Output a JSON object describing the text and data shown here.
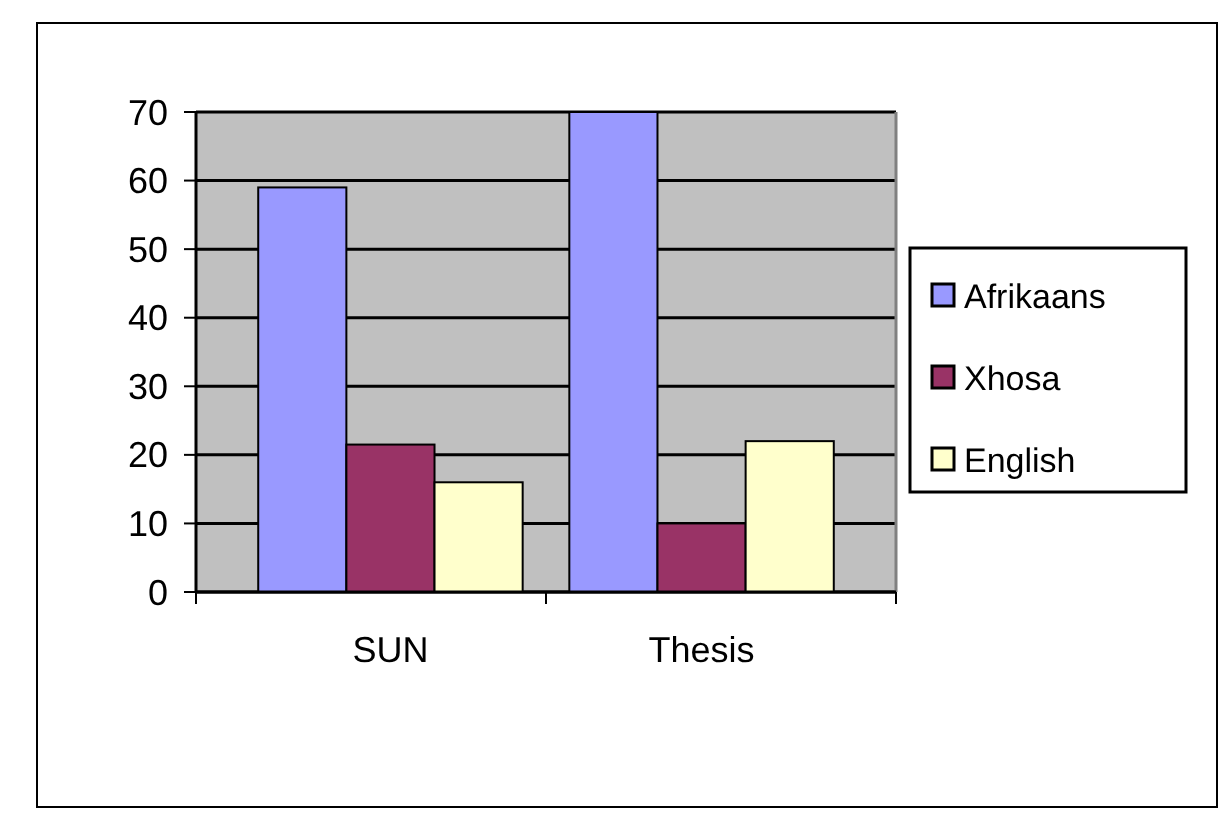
{
  "chart_data": {
    "type": "bar",
    "categories": [
      "SUN",
      "Thesis"
    ],
    "series": [
      {
        "name": "Afrikaans",
        "color": "#9999ff",
        "values": [
          59,
          70
        ]
      },
      {
        "name": "Xhosa",
        "color": "#993366",
        "values": [
          21.5,
          10
        ]
      },
      {
        "name": "English",
        "color": "#ffffcc",
        "values": [
          16,
          22
        ]
      }
    ],
    "ylim": [
      0,
      70
    ],
    "yticks": [
      0,
      10,
      20,
      30,
      40,
      50,
      60,
      70
    ],
    "grid": "y",
    "legend": "right"
  }
}
